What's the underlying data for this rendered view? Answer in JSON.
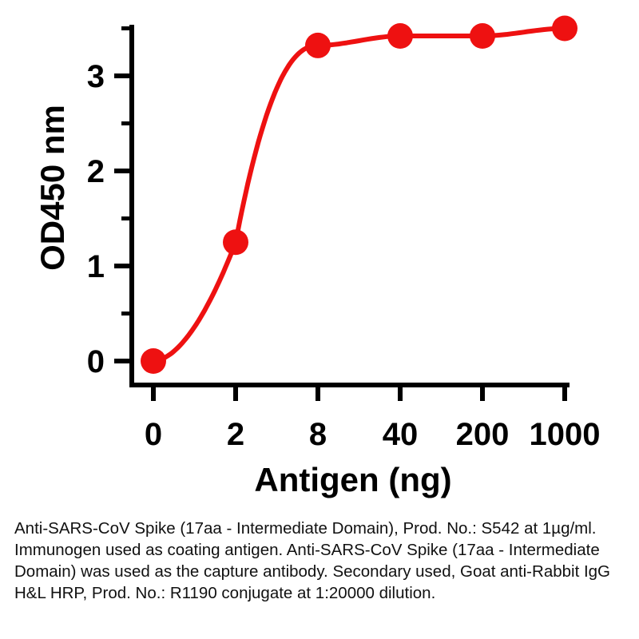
{
  "chart_data": {
    "type": "line",
    "xlabel": "Antigen (ng)",
    "ylabel": "OD450 nm",
    "categories": [
      "0",
      "2",
      "8",
      "40",
      "200",
      "1000"
    ],
    "series": [
      {
        "values": [
          0.0,
          1.25,
          3.32,
          3.42,
          3.42,
          3.5
        ]
      }
    ],
    "ylim": [
      0,
      3.6
    ],
    "yticks": [
      0,
      1,
      2,
      3
    ],
    "grid": false,
    "legend": "none",
    "color": "#ee1111"
  },
  "caption": "Anti-SARS-CoV Spike (17aa - Intermediate Domain), Prod. No.: S542 at 1µg/ml. Immunogen used as coating antigen. Anti-SARS-CoV Spike (17aa - Intermediate Domain) was used as the capture antibody. Secondary used, Goat anti-Rabbit IgG H&L HRP, Prod. No.: R1190 conjugate at 1:20000 dilution."
}
